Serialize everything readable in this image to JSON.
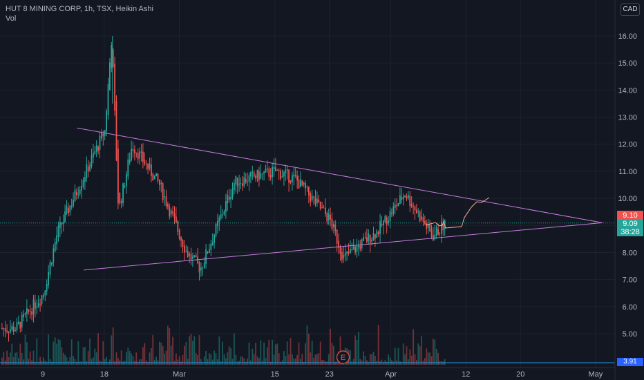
{
  "header": {
    "title": "HUT 8 MINING CORP, 1h, TSX, Heikin Ashi",
    "volume_label": "Vol",
    "currency": "CAD"
  },
  "colors": {
    "background": "#131722",
    "up": "#26a69a",
    "down": "#ef5350",
    "trendline": "#c77dde",
    "drawing": "#ffb199",
    "volume_line": "#2196f3",
    "dotted_price": "#26a69a"
  },
  "price_tags": {
    "last_price": "9.10",
    "current_price": "9.09",
    "countdown": "38:28",
    "volume_value": "3.91"
  },
  "annotations": {
    "earnings_marker": "E"
  },
  "chart_data": {
    "type": "candlestick",
    "title": "HUT 8 MINING CORP, 1h, TSX, Heikin Ashi",
    "xlabel": "",
    "ylabel": "",
    "y_ticks": [
      "16.00",
      "15.00",
      "14.00",
      "13.00",
      "12.00",
      "11.00",
      "10.00",
      "9.00",
      "8.00",
      "7.00",
      "6.00",
      "5.00"
    ],
    "x_ticks": [
      "9",
      "18",
      "Mar",
      "15",
      "23",
      "Apr",
      "12",
      "20",
      "May"
    ],
    "ylim": [
      4.6,
      16.9
    ],
    "grid": true,
    "key_points": [
      {
        "date": "Feb 5",
        "price": 5.2
      },
      {
        "date": "Feb 9",
        "price": 6.5
      },
      {
        "date": "Feb 11",
        "price": 8.7
      },
      {
        "date": "Feb 18",
        "price": 12.5
      },
      {
        "date": "Feb 19",
        "price": 16.0
      },
      {
        "date": "Feb 20",
        "price": 9.5
      },
      {
        "date": "Feb 22",
        "price": 12.0
      },
      {
        "date": "Feb 26",
        "price": 10.5
      },
      {
        "date": "Mar 2",
        "price": 8.0
      },
      {
        "date": "Mar 4",
        "price": 7.4
      },
      {
        "date": "Mar 9",
        "price": 10.6
      },
      {
        "date": "Mar 15",
        "price": 11.0
      },
      {
        "date": "Mar 18",
        "price": 10.7
      },
      {
        "date": "Mar 23",
        "price": 9.2
      },
      {
        "date": "Mar 25",
        "price": 7.8
      },
      {
        "date": "Mar 30",
        "price": 8.8
      },
      {
        "date": "Apr 3",
        "price": 10.2
      },
      {
        "date": "Apr 7",
        "price": 8.6
      },
      {
        "date": "Apr 9",
        "price": 9.1
      }
    ],
    "trendlines": [
      {
        "name": "upper",
        "from": {
          "date": "Feb 14",
          "price": 12.6
        },
        "to": {
          "date": "May 2",
          "price": 9.1
        }
      },
      {
        "name": "lower",
        "from": {
          "date": "Feb 15",
          "price": 7.35
        },
        "to": {
          "date": "May 2",
          "price": 9.1
        }
      }
    ],
    "last_price": 9.09,
    "volume_last": 3.91
  }
}
